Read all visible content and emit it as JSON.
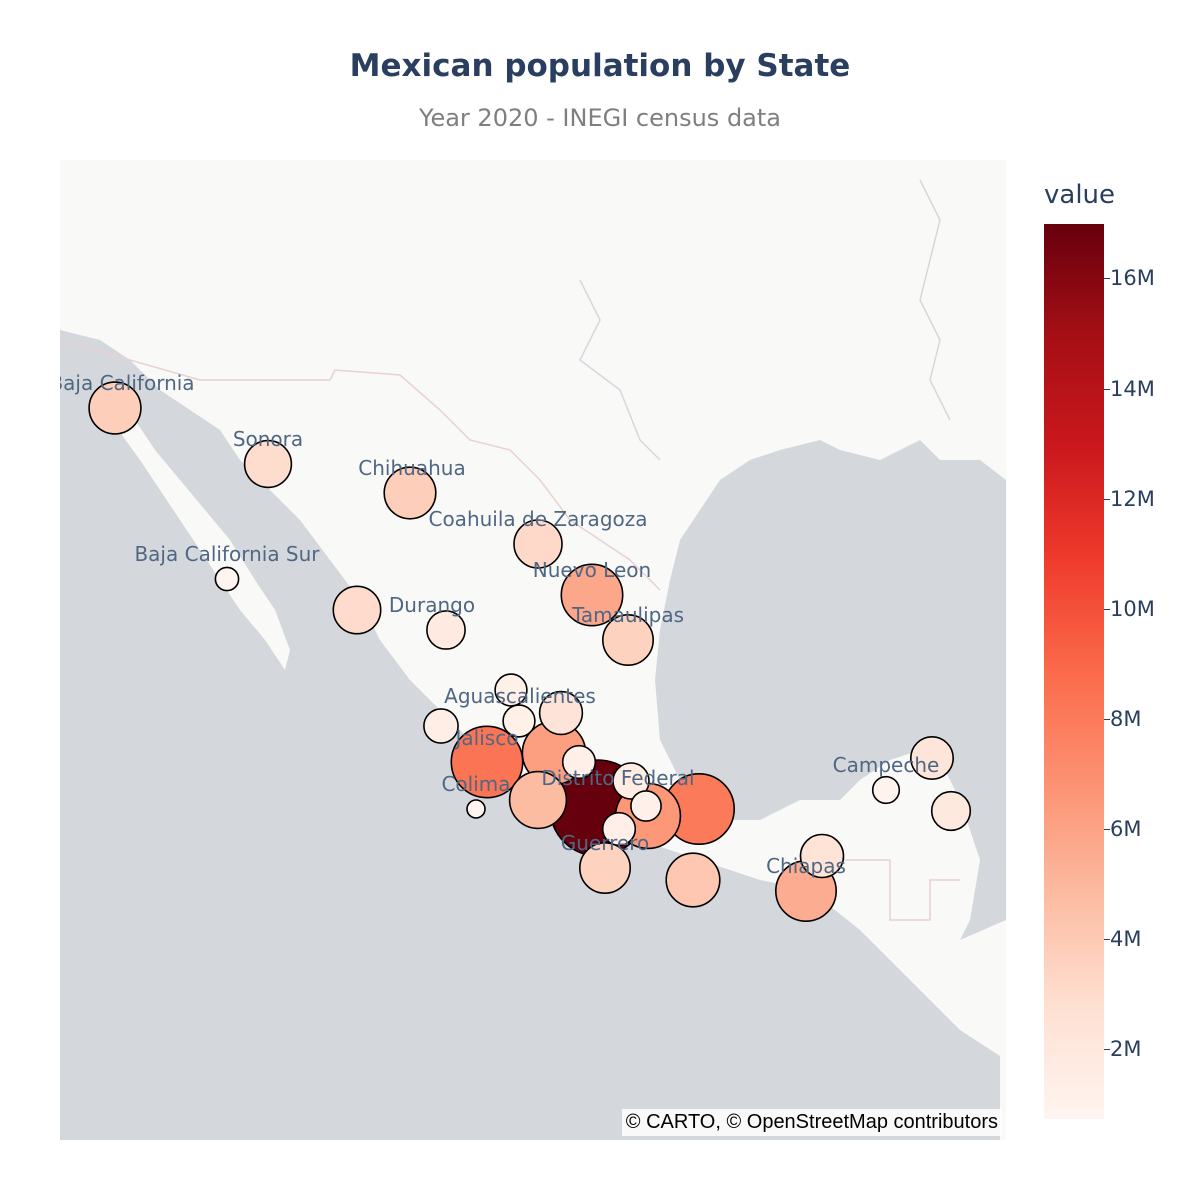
{
  "title": "Mexican population by State",
  "subtitle": "Year 2020 - INEGI census data",
  "attribution": "© CARTO, © OpenStreetMap contributors",
  "colorbar": {
    "title": "value",
    "ticks": [
      "2M",
      "4M",
      "6M",
      "8M",
      "10M",
      "12M",
      "14M",
      "16M"
    ],
    "tick_values": [
      2000000,
      4000000,
      6000000,
      8000000,
      10000000,
      12000000,
      14000000,
      16000000
    ],
    "range": [
      730000,
      16990000
    ],
    "colorscale": "Reds"
  },
  "state_labels": [
    "Baja California",
    "Sonora",
    "Chihuahua",
    "Coahuila de Zaragoza",
    "Baja California Sur",
    "Nuevo Leon",
    "Durango",
    "Tamaulipas",
    "Aguascalientes",
    "Jalisco",
    "Distrito Federal",
    "Colima",
    "Guerrero",
    "Campeche",
    "Chiapas"
  ],
  "chart_data": {
    "type": "scatter",
    "points": [
      {
        "label": "Baja California",
        "value": 3770000
      },
      {
        "label": "Sonora",
        "value": 2940000
      },
      {
        "label": "Chihuahua",
        "value": 3740000
      },
      {
        "label": "Coahuila de Zaragoza",
        "value": 3150000
      },
      {
        "label": "Baja California Sur",
        "value": 800000
      },
      {
        "label": "Nuevo Leon",
        "value": 5780000
      },
      {
        "label": null,
        "value": 3030000
      },
      {
        "label": "Durango",
        "value": 1830000
      },
      {
        "label": "Tamaulipas",
        "value": 3530000
      },
      {
        "label": null,
        "value": 1240000
      },
      {
        "label": "Aguascalientes",
        "value": 1430000
      },
      {
        "label": null,
        "value": 1240000
      },
      {
        "label": null,
        "value": 2370000
      },
      {
        "label": "Jalisco",
        "value": 8350000
      },
      {
        "label": null,
        "value": 6170000
      },
      {
        "label": null,
        "value": 1300000
      },
      {
        "label": "Distrito Federal",
        "value": 16990000
      },
      {
        "label": null,
        "value": 1600000
      },
      {
        "label": "Colima",
        "value": 730000
      },
      {
        "label": null,
        "value": 4750000
      },
      {
        "label": null,
        "value": 1300000
      },
      {
        "label": null,
        "value": 6580000
      },
      {
        "label": null,
        "value": 1130000
      },
      {
        "label": "Guerrero",
        "value": 3540000
      },
      {
        "label": null,
        "value": 8060000
      },
      {
        "label": null,
        "value": 4130000
      },
      {
        "label": "Chiapas",
        "value": 5540000
      },
      {
        "label": null,
        "value": 2400000
      },
      {
        "label": "Campeche",
        "value": 930000
      },
      {
        "label": null,
        "value": 2320000
      },
      {
        "label": null,
        "value": 1860000
      }
    ]
  }
}
